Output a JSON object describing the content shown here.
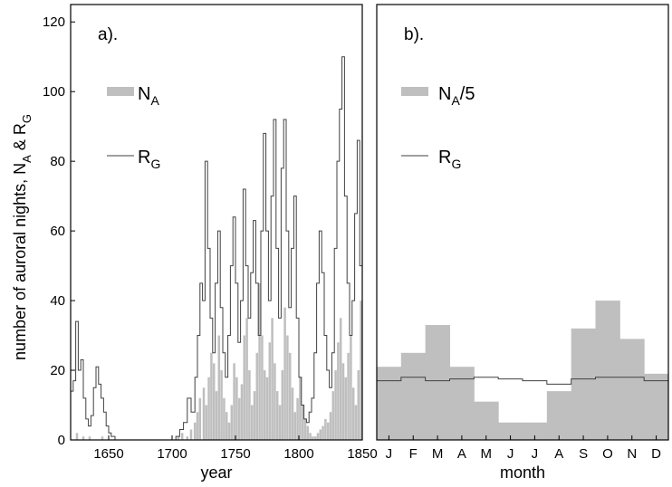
{
  "chart_data": [
    {
      "type": "bar",
      "panel_label": "a).",
      "xlabel": "year",
      "ylabel": "number of auroral nights, N_A & R_G",
      "xlim": [
        1620,
        1850
      ],
      "ylim": [
        0,
        125
      ],
      "xticks": [
        "1650",
        "1700",
        "1750",
        "1800",
        "1850"
      ],
      "yticks": [
        "0",
        "20",
        "40",
        "60",
        "80",
        "100",
        "120"
      ],
      "legend_placement": "top-left",
      "series": [
        {
          "name": "N_A",
          "style": "grey bars",
          "color": "#bfbfbf",
          "x": [
            1625,
            1630,
            1635,
            1640,
            1645,
            1650,
            1655,
            1660,
            1665,
            1670,
            1675,
            1680,
            1685,
            1690,
            1695,
            1700,
            1705,
            1708,
            1712,
            1715,
            1718,
            1720,
            1722,
            1725,
            1727,
            1729,
            1731,
            1733,
            1735,
            1737,
            1739,
            1741,
            1743,
            1745,
            1747,
            1749,
            1751,
            1753,
            1755,
            1757,
            1759,
            1761,
            1763,
            1765,
            1767,
            1769,
            1771,
            1773,
            1775,
            1777,
            1779,
            1781,
            1783,
            1785,
            1787,
            1789,
            1791,
            1793,
            1795,
            1797,
            1799,
            1801,
            1803,
            1805,
            1807,
            1809,
            1811,
            1813,
            1815,
            1817,
            1819,
            1821,
            1823,
            1825,
            1827,
            1829,
            1831,
            1833,
            1835,
            1837,
            1839,
            1841,
            1843,
            1845,
            1847,
            1849
          ],
          "values": [
            2,
            1,
            1,
            0,
            1,
            0,
            0,
            0,
            0,
            0,
            0,
            0,
            0,
            0,
            0,
            0,
            1,
            2,
            1,
            3,
            5,
            8,
            12,
            15,
            10,
            18,
            25,
            22,
            14,
            30,
            20,
            12,
            8,
            5,
            10,
            22,
            18,
            12,
            16,
            30,
            35,
            20,
            10,
            14,
            25,
            45,
            30,
            20,
            18,
            28,
            35,
            22,
            14,
            10,
            20,
            38,
            30,
            25,
            15,
            8,
            12,
            18,
            10,
            6,
            4,
            2,
            1,
            1,
            2,
            3,
            4,
            6,
            5,
            8,
            14,
            20,
            28,
            35,
            22,
            18,
            25,
            30,
            15,
            10,
            20,
            40
          ]
        },
        {
          "name": "R_G",
          "style": "thin line",
          "color": "#404040",
          "x": [
            1620,
            1622,
            1624,
            1626,
            1628,
            1630,
            1632,
            1634,
            1636,
            1638,
            1640,
            1642,
            1644,
            1646,
            1648,
            1650,
            1652,
            1655,
            1658,
            1660,
            1665,
            1670,
            1675,
            1680,
            1685,
            1690,
            1695,
            1700,
            1703,
            1706,
            1709,
            1712,
            1715,
            1718,
            1720,
            1722,
            1724,
            1726,
            1728,
            1730,
            1732,
            1734,
            1736,
            1738,
            1740,
            1742,
            1744,
            1746,
            1748,
            1750,
            1752,
            1754,
            1756,
            1758,
            1760,
            1762,
            1764,
            1766,
            1768,
            1770,
            1772,
            1774,
            1776,
            1778,
            1780,
            1782,
            1784,
            1786,
            1788,
            1790,
            1792,
            1794,
            1796,
            1798,
            1800,
            1802,
            1804,
            1806,
            1808,
            1810,
            1812,
            1814,
            1816,
            1818,
            1820,
            1822,
            1824,
            1826,
            1828,
            1830,
            1832,
            1834,
            1836,
            1838,
            1840,
            1842,
            1844,
            1846,
            1848,
            1850
          ],
          "values": [
            14,
            17,
            34,
            20,
            23,
            12,
            6,
            4,
            7,
            15,
            21,
            16,
            12,
            8,
            4,
            2,
            1,
            0,
            0,
            0,
            0,
            0,
            0,
            0,
            0,
            0,
            0,
            0,
            1,
            3,
            5,
            12,
            8,
            18,
            30,
            45,
            40,
            80,
            55,
            35,
            25,
            45,
            60,
            38,
            25,
            18,
            30,
            50,
            64,
            45,
            28,
            40,
            72,
            50,
            35,
            48,
            63,
            45,
            30,
            60,
            88,
            60,
            40,
            70,
            92,
            55,
            35,
            78,
            92,
            60,
            38,
            55,
            70,
            35,
            18,
            10,
            6,
            5,
            8,
            12,
            25,
            45,
            60,
            48,
            30,
            20,
            15,
            25,
            55,
            80,
            95,
            110,
            70,
            45,
            30,
            40,
            65,
            86,
            50,
            20
          ]
        }
      ]
    },
    {
      "type": "bar",
      "panel_label": "b).",
      "xlabel": "month",
      "ylim": [
        0,
        125
      ],
      "categories": [
        "J",
        "F",
        "M",
        "A",
        "M",
        "J",
        "J",
        "A",
        "S",
        "O",
        "N",
        "D"
      ],
      "legend_placement": "top-left",
      "series": [
        {
          "name": "N_A/5",
          "style": "grey step bars",
          "color": "#bfbfbf",
          "values": [
            21,
            25,
            33,
            21,
            11,
            5,
            5,
            14,
            32,
            40,
            29,
            19
          ]
        },
        {
          "name": "R_G",
          "style": "thin step line",
          "color": "#404040",
          "values": [
            17,
            18,
            17,
            17.5,
            18,
            17.5,
            17,
            16,
            17.5,
            18,
            18,
            17
          ]
        }
      ]
    }
  ],
  "legend_text": {
    "a_na_main": "N",
    "a_na_sub": "A",
    "a_rg_main": "R",
    "a_rg_sub": "G",
    "b_na_main": "N",
    "b_na_sub": "A",
    "b_na_suffix": "/5",
    "b_rg_main": "R",
    "b_rg_sub": "G"
  },
  "ylabel_parts": {
    "prefix": "number of auroral nights, N",
    "sub1": "A",
    "mid": " & R",
    "sub2": "G"
  }
}
